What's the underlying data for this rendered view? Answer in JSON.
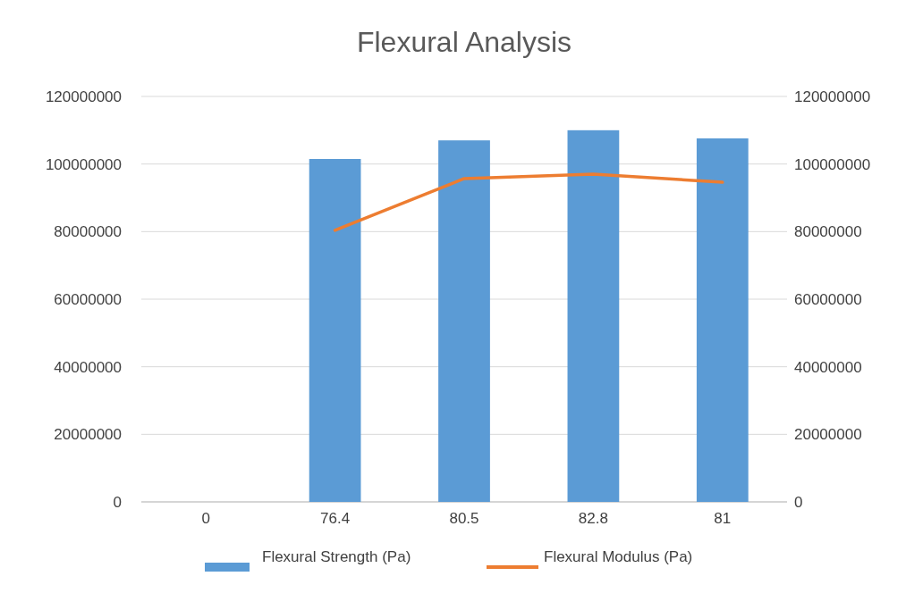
{
  "chart_data": {
    "type": "bar",
    "title": "Flexural Analysis",
    "categories": [
      "0",
      "76.4",
      "80.5",
      "82.8",
      "81"
    ],
    "series": [
      {
        "name": "Flexural Strength (Pa)",
        "color": "#5b9bd5",
        "values": [
          0,
          101500000,
          107000000,
          110000000,
          107600000
        ]
      },
      {
        "name": "Flexural Modulus (Pa)",
        "type": "line",
        "axis": "y2",
        "color": "#ed7d31",
        "values": [
          null,
          80400000,
          95700000,
          97000000,
          94600000
        ]
      }
    ],
    "ylim": [
      0,
      120000000
    ],
    "yticks": [
      0,
      20000000,
      40000000,
      60000000,
      80000000,
      100000000,
      120000000
    ],
    "y2lim": [
      0,
      120000000
    ],
    "y2ticks": [
      0,
      20000000,
      40000000,
      60000000,
      80000000,
      100000000,
      120000000
    ],
    "grid": "y",
    "legend": "bottom"
  }
}
